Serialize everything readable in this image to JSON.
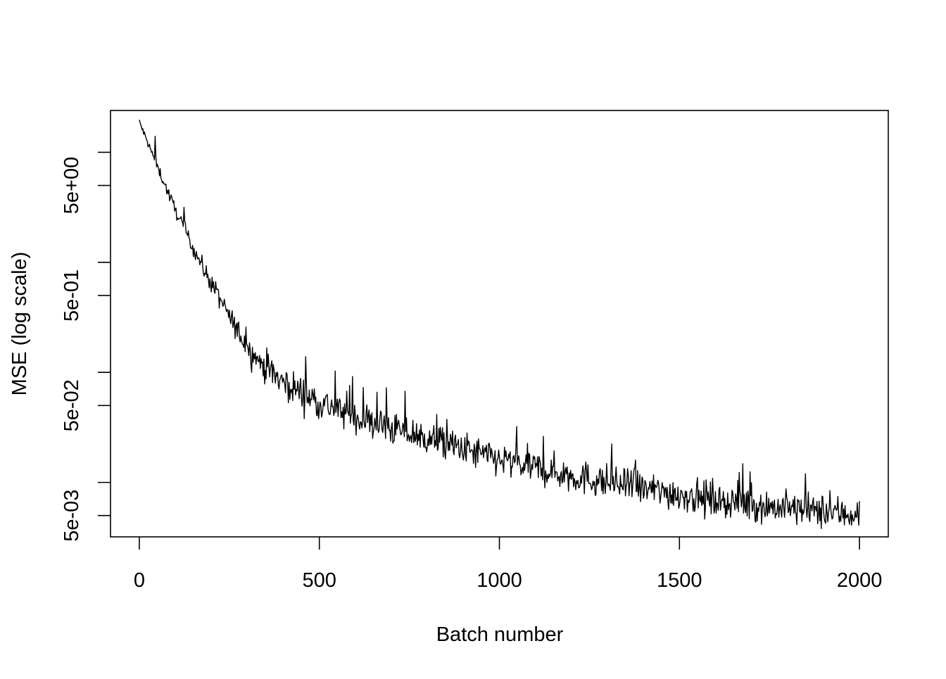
{
  "chart_data": {
    "type": "line",
    "title": "",
    "xlabel": "Batch number",
    "ylabel": "MSE (log scale)",
    "x_scale": "linear",
    "y_scale": "log",
    "xlim": [
      -80,
      2080
    ],
    "ylim": [
      0.0032,
      24
    ],
    "x_ticks": [
      0,
      500,
      1000,
      1500,
      2000
    ],
    "x_tick_labels": [
      "0",
      "500",
      "1000",
      "1500",
      "2000"
    ],
    "y_ticks_labeled": [
      5,
      0.5,
      0.05,
      0.005
    ],
    "y_tick_labels": [
      "5e+00",
      "5e-01",
      "5e-02",
      "5e-03"
    ],
    "y_ticks_minor": [
      10,
      1,
      0.1,
      0.01
    ],
    "grid": false,
    "legend": "none",
    "line_color": "#000000",
    "series": [
      {
        "x": [
          0,
          20,
          40,
          60,
          80,
          100,
          120,
          150,
          180,
          200,
          250,
          300,
          350,
          400,
          450,
          500,
          600,
          700,
          800,
          900,
          1000,
          1100,
          1200,
          1300,
          1400,
          1500,
          1600,
          1700,
          1800,
          1900,
          2000
        ],
        "values": [
          19,
          13,
          9,
          6.2,
          4.3,
          3.0,
          2.2,
          1.35,
          0.85,
          0.65,
          0.32,
          0.17,
          0.11,
          0.082,
          0.066,
          0.054,
          0.039,
          0.031,
          0.025,
          0.02,
          0.016,
          0.0135,
          0.0115,
          0.01,
          0.0088,
          0.0078,
          0.007,
          0.0063,
          0.0058,
          0.0054,
          0.0051
        ]
      }
    ]
  }
}
